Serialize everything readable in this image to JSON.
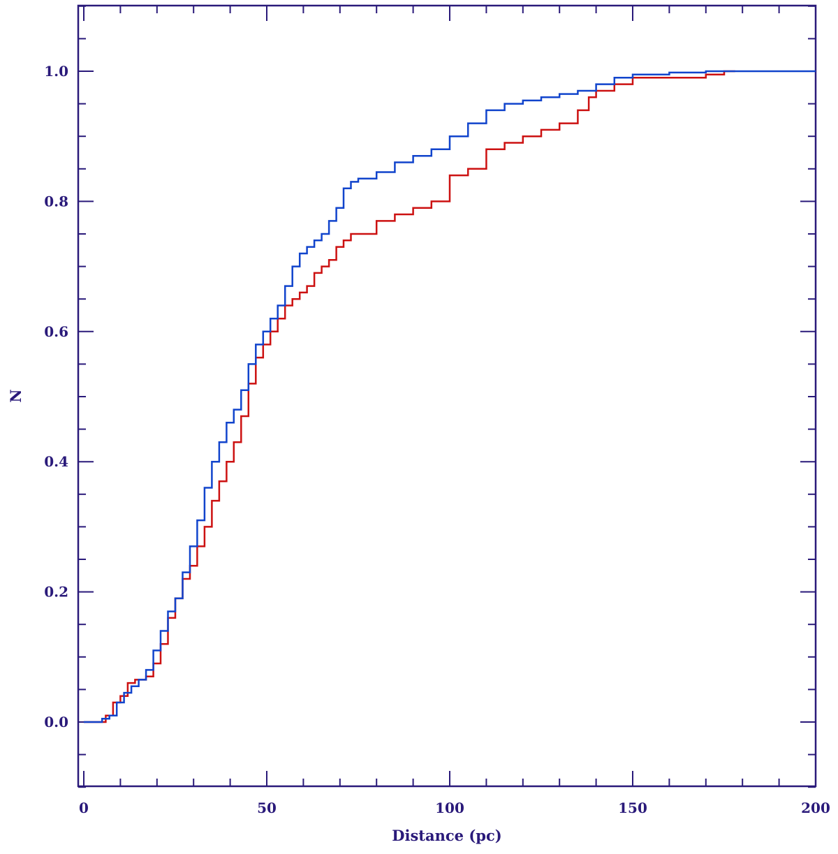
{
  "chart_data": {
    "type": "line",
    "xlabel": "Distance (pc)",
    "ylabel": "N",
    "xlim": [
      0,
      200
    ],
    "ylim": [
      -0.1,
      1.1
    ],
    "x_ticks": [
      "0",
      "50",
      "100",
      "150",
      "200"
    ],
    "y_ticks": [
      "0.0",
      "0.2",
      "0.4",
      "0.6",
      "0.8",
      "1.0"
    ],
    "grid": false,
    "step": true,
    "colors": {
      "axis": "#2a1a7a",
      "red_series": "#cc1111",
      "blue_series": "#1144cc"
    },
    "series": [
      {
        "color": "#cc1111",
        "x": [
          0,
          3,
          6,
          8,
          10,
          12,
          14,
          17,
          19,
          21,
          23,
          25,
          27,
          29,
          31,
          33,
          35,
          37,
          39,
          41,
          43,
          45,
          47,
          49,
          51,
          53,
          55,
          57,
          59,
          61,
          63,
          65,
          67,
          69,
          71,
          73,
          75,
          80,
          85,
          90,
          95,
          100,
          105,
          110,
          115,
          120,
          125,
          130,
          135,
          138,
          140,
          145,
          150,
          160,
          170,
          175,
          178
        ],
        "y": [
          0.0,
          0.0,
          0.01,
          0.03,
          0.04,
          0.06,
          0.065,
          0.07,
          0.09,
          0.12,
          0.16,
          0.19,
          0.22,
          0.24,
          0.27,
          0.3,
          0.34,
          0.37,
          0.4,
          0.43,
          0.47,
          0.52,
          0.56,
          0.58,
          0.6,
          0.62,
          0.64,
          0.65,
          0.66,
          0.67,
          0.69,
          0.7,
          0.71,
          0.73,
          0.74,
          0.75,
          0.75,
          0.77,
          0.78,
          0.79,
          0.8,
          0.84,
          0.85,
          0.88,
          0.89,
          0.9,
          0.91,
          0.92,
          0.94,
          0.96,
          0.97,
          0.98,
          0.99,
          0.99,
          0.995,
          1.0,
          1.0
        ]
      },
      {
        "color": "#1144cc",
        "x": [
          0,
          3,
          5,
          7,
          9,
          11,
          13,
          15,
          17,
          19,
          21,
          23,
          25,
          27,
          29,
          31,
          33,
          35,
          37,
          39,
          41,
          43,
          45,
          47,
          49,
          51,
          53,
          55,
          57,
          59,
          61,
          63,
          65,
          67,
          69,
          71,
          73,
          75,
          80,
          85,
          90,
          95,
          100,
          105,
          110,
          115,
          120,
          125,
          130,
          135,
          140,
          145,
          150,
          160,
          170,
          180,
          200
        ],
        "y": [
          0.0,
          0.0,
          0.005,
          0.01,
          0.03,
          0.045,
          0.055,
          0.065,
          0.08,
          0.11,
          0.14,
          0.17,
          0.19,
          0.23,
          0.27,
          0.31,
          0.36,
          0.4,
          0.43,
          0.46,
          0.48,
          0.51,
          0.55,
          0.58,
          0.6,
          0.62,
          0.64,
          0.67,
          0.7,
          0.72,
          0.73,
          0.74,
          0.75,
          0.77,
          0.79,
          0.82,
          0.83,
          0.835,
          0.845,
          0.86,
          0.87,
          0.88,
          0.9,
          0.92,
          0.94,
          0.95,
          0.955,
          0.96,
          0.965,
          0.97,
          0.98,
          0.99,
          0.995,
          0.998,
          1.0,
          1.0,
          1.0
        ]
      }
    ]
  }
}
